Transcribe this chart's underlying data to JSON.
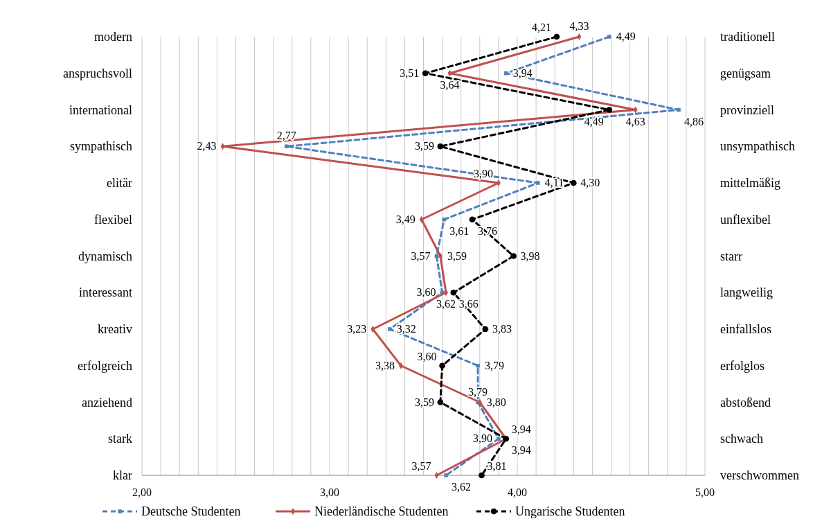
{
  "chart_data": {
    "type": "line",
    "orientation": "horizontal",
    "categories": [
      "modern",
      "anspruchsvoll",
      "international",
      "sympathisch",
      "elitär",
      "flexibel",
      "dynamisch",
      "interessant",
      "kreativ",
      "erfolgreich",
      "anziehend",
      "stark",
      "klar"
    ],
    "y2_categories": [
      "traditionell",
      "genügsam",
      "provinziell",
      "unsympathisch",
      "mittelmäßig",
      "unflexibel",
      "starr",
      "langweilig",
      "einfallslos",
      "erfolglos",
      "abstoßend",
      "schwach",
      "verschwommen"
    ],
    "xlim": [
      2,
      5
    ],
    "xticks": [
      {
        "value": 2,
        "label": "2,00"
      },
      {
        "value": 2.1,
        "label": null
      },
      {
        "value": 2.2,
        "label": null
      },
      {
        "value": 2.3,
        "label": null
      },
      {
        "value": 2.4,
        "label": null
      },
      {
        "value": 2.5,
        "label": null
      },
      {
        "value": 2.6,
        "label": null
      },
      {
        "value": 2.7,
        "label": null
      },
      {
        "value": 2.8,
        "label": null
      },
      {
        "value": 2.9,
        "label": null
      },
      {
        "value": 3,
        "label": "3,00"
      },
      {
        "value": 3.1,
        "label": null
      },
      {
        "value": 3.2,
        "label": null
      },
      {
        "value": 3.3,
        "label": null
      },
      {
        "value": 3.4,
        "label": null
      },
      {
        "value": 3.5,
        "label": null
      },
      {
        "value": 3.6,
        "label": null
      },
      {
        "value": 3.7,
        "label": null
      },
      {
        "value": 3.8,
        "label": null
      },
      {
        "value": 3.9,
        "label": null
      },
      {
        "value": 4,
        "label": "4,00"
      },
      {
        "value": 4.1,
        "label": null
      },
      {
        "value": 4.2,
        "label": null
      },
      {
        "value": 4.3,
        "label": null
      },
      {
        "value": 4.4,
        "label": null
      },
      {
        "value": 4.5,
        "label": null
      },
      {
        "value": 4.6,
        "label": null
      },
      {
        "value": 4.7,
        "label": null
      },
      {
        "value": 4.8,
        "label": null
      },
      {
        "value": 4.9,
        "label": null
      },
      {
        "value": 5,
        "label": "5,00"
      }
    ],
    "grid": "x",
    "legend": "bottom",
    "series": [
      {
        "name": "Deutsche Studenten",
        "color": "#4f81bd",
        "marker": "square",
        "line_style": "dashed",
        "values": [
          4.49,
          3.94,
          4.86,
          2.77,
          4.11,
          3.61,
          3.57,
          3.6,
          3.32,
          3.79,
          3.79,
          3.9,
          3.62
        ],
        "value_labels": [
          "4,49",
          "3,94",
          "4,86",
          "2,77",
          "4,11",
          "3,61",
          "3,57",
          "3,60",
          "3,32",
          "3,79",
          "3,79",
          "3,90",
          "3,62"
        ]
      },
      {
        "name": "Niederländische Studenten",
        "color": "#c0504d",
        "marker": "diamond",
        "line_style": "solid",
        "values": [
          4.33,
          3.64,
          4.63,
          2.43,
          3.9,
          3.49,
          3.59,
          3.62,
          3.23,
          3.38,
          3.8,
          3.94,
          3.57
        ],
        "value_labels": [
          "4,33",
          "3,64",
          "4,63",
          "2,43",
          "3,90",
          "3,49",
          "3,59",
          "3,62",
          "3,23",
          "3,38",
          "3,80",
          "3,94",
          "3,57"
        ]
      },
      {
        "name": "Ungarische Studenten",
        "color": "#000000",
        "marker": "circle",
        "line_style": "dashed",
        "values": [
          4.21,
          3.51,
          4.49,
          3.59,
          4.3,
          3.76,
          3.98,
          3.66,
          3.83,
          3.6,
          3.59,
          3.94,
          3.81
        ],
        "value_labels": [
          "4,21",
          "3,51",
          "4,49",
          "3,59",
          "4,30",
          "3,76",
          "3,98",
          "3,66",
          "3,83",
          "3,60",
          "3,59",
          "3,94",
          "3,81"
        ]
      }
    ]
  }
}
